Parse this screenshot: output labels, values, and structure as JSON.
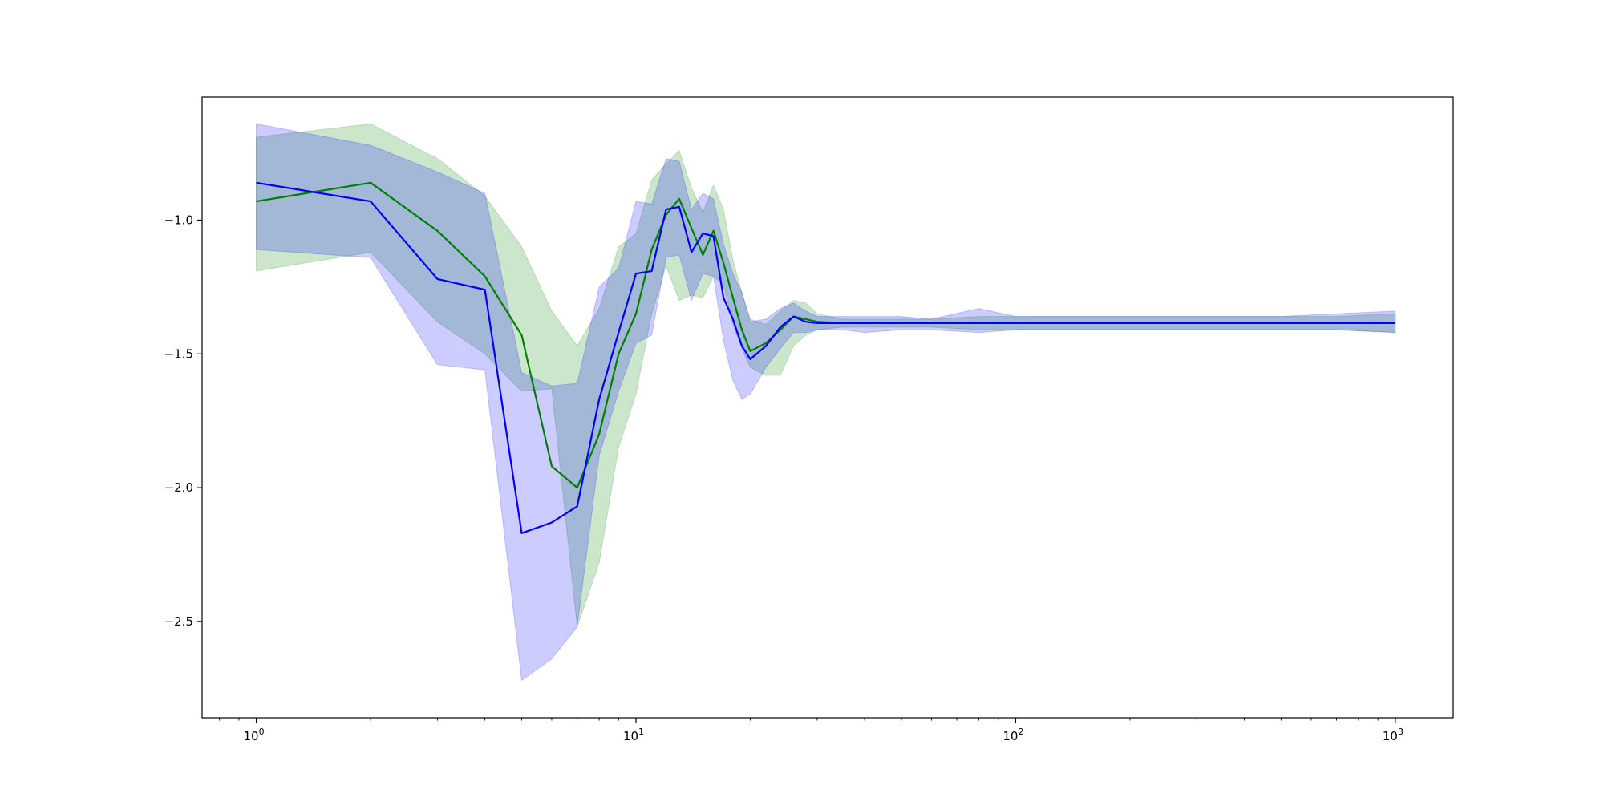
{
  "chart_data": {
    "type": "line",
    "title": "",
    "xlabel": "",
    "ylabel": "",
    "xscale": "log",
    "xlim": [
      0.72,
      1420
    ],
    "ylim": [
      -2.86,
      -0.54
    ],
    "grid": false,
    "x_ticks": [
      {
        "value": 1,
        "base": "10",
        "exp": "0"
      },
      {
        "value": 10,
        "base": "10",
        "exp": "1"
      },
      {
        "value": 100,
        "base": "10",
        "exp": "2"
      },
      {
        "value": 1000,
        "base": "10",
        "exp": "3"
      }
    ],
    "y_ticks": [
      {
        "value": -1.0,
        "label": "−1.0"
      },
      {
        "value": -1.5,
        "label": "−1.5"
      },
      {
        "value": -2.0,
        "label": "−2.0"
      },
      {
        "value": -2.5,
        "label": "−2.5"
      }
    ],
    "series": [
      {
        "color": "#008000",
        "band_color": "#008000",
        "band_opacity": 0.2,
        "x": [
          1,
          2,
          3,
          4,
          5,
          6,
          7,
          8,
          9,
          10,
          11,
          12,
          13,
          14,
          15,
          16,
          17,
          18,
          19,
          20,
          22,
          24,
          26,
          28,
          30,
          35,
          40,
          50,
          60,
          80,
          100,
          150,
          200,
          300,
          500,
          700,
          1000
        ],
        "y": [
          -0.93,
          -0.86,
          -1.04,
          -1.21,
          -1.43,
          -1.92,
          -2.0,
          -1.8,
          -1.5,
          -1.35,
          -1.11,
          -0.98,
          -0.92,
          -1.03,
          -1.13,
          -1.04,
          -1.16,
          -1.29,
          -1.41,
          -1.49,
          -1.46,
          -1.41,
          -1.36,
          -1.37,
          -1.38,
          -1.385,
          -1.385,
          -1.385,
          -1.385,
          -1.385,
          -1.385,
          -1.385,
          -1.385,
          -1.385,
          -1.385,
          -1.385,
          -1.385
        ],
        "lower": [
          -1.19,
          -1.12,
          -1.38,
          -1.5,
          -1.64,
          -1.63,
          -2.52,
          -2.28,
          -1.85,
          -1.65,
          -1.35,
          -1.17,
          -1.3,
          -1.28,
          -1.29,
          -1.21,
          -1.24,
          -1.39,
          -1.48,
          -1.55,
          -1.58,
          -1.58,
          -1.47,
          -1.43,
          -1.41,
          -1.4,
          -1.4,
          -1.4,
          -1.4,
          -1.41,
          -1.41,
          -1.41,
          -1.41,
          -1.41,
          -1.41,
          -1.41,
          -1.42
        ],
        "upper": [
          -0.69,
          -0.64,
          -0.77,
          -0.91,
          -1.1,
          -1.34,
          -1.47,
          -1.33,
          -1.1,
          -1.05,
          -0.85,
          -0.79,
          -0.74,
          -0.88,
          -0.97,
          -0.87,
          -0.96,
          -1.15,
          -1.27,
          -1.37,
          -1.39,
          -1.34,
          -1.3,
          -1.31,
          -1.35,
          -1.37,
          -1.37,
          -1.37,
          -1.37,
          -1.36,
          -1.36,
          -1.36,
          -1.36,
          -1.36,
          -1.36,
          -1.36,
          -1.35
        ]
      },
      {
        "color": "#0000ff",
        "band_color": "#0000ff",
        "band_opacity": 0.2,
        "x": [
          1,
          2,
          3,
          4,
          5,
          6,
          7,
          8,
          9,
          10,
          11,
          12,
          13,
          14,
          15,
          16,
          17,
          18,
          19,
          20,
          22,
          24,
          26,
          28,
          30,
          35,
          40,
          50,
          60,
          80,
          100,
          150,
          200,
          300,
          500,
          700,
          1000
        ],
        "y": [
          -0.86,
          -0.93,
          -1.22,
          -1.26,
          -2.17,
          -2.13,
          -2.07,
          -1.67,
          -1.42,
          -1.2,
          -1.19,
          -0.96,
          -0.95,
          -1.12,
          -1.05,
          -1.06,
          -1.29,
          -1.37,
          -1.47,
          -1.52,
          -1.47,
          -1.4,
          -1.36,
          -1.38,
          -1.385,
          -1.385,
          -1.385,
          -1.385,
          -1.385,
          -1.385,
          -1.385,
          -1.385,
          -1.385,
          -1.385,
          -1.385,
          -1.385,
          -1.385
        ],
        "lower": [
          -1.11,
          -1.14,
          -1.54,
          -1.56,
          -2.72,
          -2.64,
          -2.52,
          -1.88,
          -1.64,
          -1.46,
          -1.43,
          -1.14,
          -1.13,
          -1.3,
          -1.2,
          -1.21,
          -1.45,
          -1.6,
          -1.67,
          -1.65,
          -1.55,
          -1.48,
          -1.42,
          -1.42,
          -1.41,
          -1.41,
          -1.42,
          -1.41,
          -1.41,
          -1.42,
          -1.41,
          -1.41,
          -1.41,
          -1.41,
          -1.41,
          -1.41,
          -1.42
        ],
        "upper": [
          -0.64,
          -0.72,
          -0.82,
          -0.9,
          -1.57,
          -1.62,
          -1.61,
          -1.25,
          -1.18,
          -0.93,
          -0.94,
          -0.77,
          -0.78,
          -0.96,
          -0.9,
          -0.92,
          -1.09,
          -1.2,
          -1.27,
          -1.38,
          -1.37,
          -1.33,
          -1.31,
          -1.34,
          -1.36,
          -1.36,
          -1.36,
          -1.36,
          -1.37,
          -1.33,
          -1.36,
          -1.36,
          -1.36,
          -1.36,
          -1.36,
          -1.35,
          -1.34
        ]
      }
    ]
  }
}
